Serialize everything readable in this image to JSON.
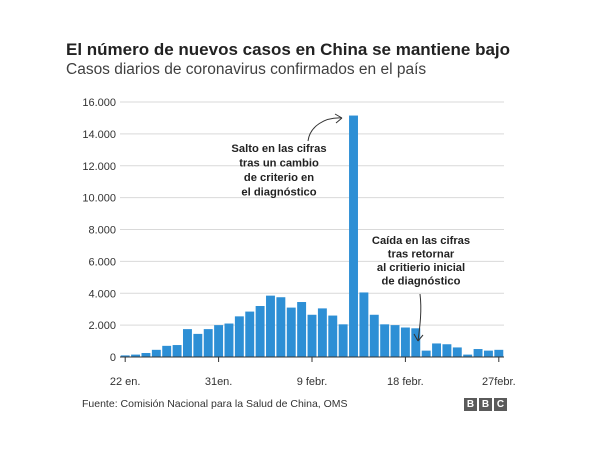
{
  "chart_data": {
    "type": "bar",
    "title": "El número de nuevos casos en China se mantiene bajo",
    "subtitle": "Casos diarios de coronavirus confirmados en el país",
    "xlabel": "",
    "ylabel": "",
    "ylim": [
      0,
      16000
    ],
    "y_ticks": [
      {
        "value": 0,
        "label": "0"
      },
      {
        "value": 2000,
        "label": "2.000"
      },
      {
        "value": 4000,
        "label": "4.000"
      },
      {
        "value": 6000,
        "label": "6.000"
      },
      {
        "value": 8000,
        "label": "8.000"
      },
      {
        "value": 10000,
        "label": "10.000"
      },
      {
        "value": 12000,
        "label": "12.000"
      },
      {
        "value": 14000,
        "label": "14.000"
      },
      {
        "value": 16000,
        "label": "16.000"
      }
    ],
    "x_ticks": [
      {
        "day": 0,
        "label": "22 en."
      },
      {
        "day": 9,
        "label": "31en."
      },
      {
        "day": 18,
        "label": "9 febr."
      },
      {
        "day": 27,
        "label": "18 febr."
      },
      {
        "day": 36,
        "label": "27febr."
      }
    ],
    "grid": true,
    "bar_color": "#2d8fd5",
    "values": [
      100,
      150,
      250,
      450,
      700,
      750,
      1750,
      1450,
      1750,
      2000,
      2100,
      2550,
      2850,
      3200,
      3850,
      3750,
      3100,
      3450,
      2650,
      3050,
      2600,
      2050,
      15150,
      4050,
      2650,
      2050,
      2000,
      1850,
      1800,
      400,
      850,
      800,
      600,
      150,
      500,
      400,
      450
    ],
    "annotations": [
      {
        "lines": [
          "Salto en las cifras",
          "tras un cambio",
          "de criterio en",
          "el diagnóstico"
        ]
      },
      {
        "lines": [
          "Caída en las cifras",
          "tras retornar",
          "al critierio inicial",
          "de diagnóstico"
        ]
      }
    ]
  },
  "footer": {
    "source": "Fuente: Comisión Nacional para la Salud de China, OMS",
    "logo_letters": [
      "B",
      "B",
      "C"
    ]
  }
}
